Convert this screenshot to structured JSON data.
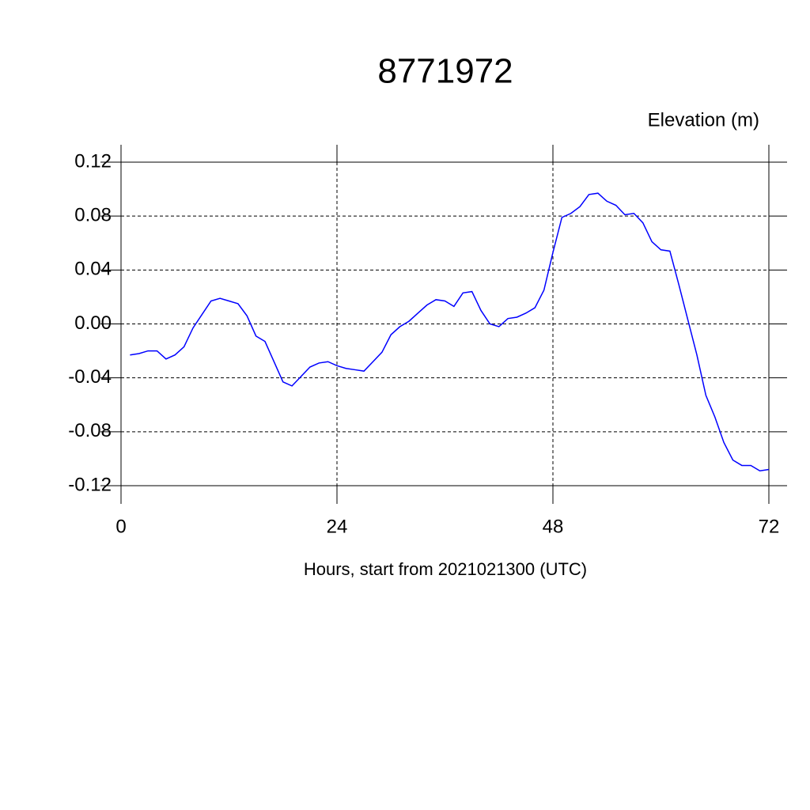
{
  "chart_data": {
    "type": "line",
    "title": "8771972",
    "ylabel": "Elevation (m)",
    "xlabel": "Hours, start from 2021021300 (UTC)",
    "x": [
      1,
      2,
      3,
      4,
      5,
      6,
      7,
      8,
      9,
      10,
      11,
      12,
      13,
      14,
      15,
      16,
      17,
      18,
      19,
      20,
      21,
      22,
      23,
      24,
      25,
      26,
      27,
      28,
      29,
      30,
      31,
      32,
      33,
      34,
      35,
      36,
      37,
      38,
      39,
      40,
      41,
      42,
      43,
      44,
      45,
      46,
      47,
      48,
      49,
      50,
      51,
      52,
      53,
      54,
      55,
      56,
      57,
      58,
      59,
      60,
      61,
      62,
      63,
      64,
      65,
      66,
      67,
      68,
      69,
      70,
      71,
      72
    ],
    "series": [
      {
        "name": "Elevation",
        "color": "#0000ff",
        "values": [
          -0.023,
          -0.022,
          -0.02,
          -0.02,
          -0.026,
          -0.023,
          -0.017,
          -0.003,
          0.007,
          0.017,
          0.019,
          0.017,
          0.015,
          0.006,
          -0.009,
          -0.013,
          -0.028,
          -0.043,
          -0.046,
          -0.039,
          -0.032,
          -0.029,
          -0.028,
          -0.031,
          -0.033,
          -0.034,
          -0.035,
          -0.028,
          -0.021,
          -0.008,
          -0.002,
          0.002,
          0.008,
          0.014,
          0.018,
          0.017,
          0.013,
          0.023,
          0.024,
          0.01,
          0.0,
          -0.002,
          0.004,
          0.005,
          0.008,
          0.012,
          0.025,
          0.053,
          0.079,
          0.082,
          0.087,
          0.096,
          0.097,
          0.091,
          0.088,
          0.081,
          0.082,
          0.075,
          0.061,
          0.055,
          0.054,
          0.029,
          0.003,
          -0.023,
          -0.053,
          -0.069,
          -0.088,
          -0.101,
          -0.105,
          -0.105,
          -0.109,
          -0.108
        ]
      }
    ],
    "xlim": [
      0,
      72
    ],
    "xticks": [
      0,
      24,
      48,
      72
    ],
    "ylim": [
      -0.12,
      0.12
    ],
    "yticks": [
      {
        "value": -0.12,
        "label": "-0.12"
      },
      {
        "value": -0.08,
        "label": "-0.08"
      },
      {
        "value": -0.04,
        "label": "-0.04"
      },
      {
        "value": 0,
        "label": "0.00"
      },
      {
        "value": 0.04,
        "label": "0.04"
      },
      {
        "value": 0.08,
        "label": "0.08"
      },
      {
        "value": 0.12,
        "label": "0.12"
      }
    ],
    "grid": true
  }
}
